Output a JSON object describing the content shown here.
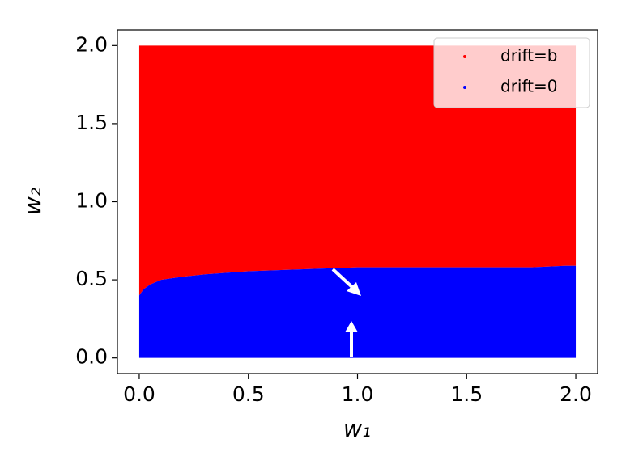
{
  "chart_data": {
    "type": "region",
    "x_label": "w₁",
    "y_label": "w₂",
    "x_range": [
      0,
      2
    ],
    "y_range": [
      0,
      2
    ],
    "boundary": {
      "x": [
        0,
        0.02,
        0.05,
        0.1,
        0.15,
        0.2,
        0.3,
        0.4,
        0.5,
        0.7,
        0.9,
        1.0,
        1.2,
        1.5,
        1.8,
        1.95,
        2.0
      ],
      "y": [
        0.4,
        0.44,
        0.47,
        0.5,
        0.51,
        0.52,
        0.535,
        0.545,
        0.555,
        0.565,
        0.575,
        0.58,
        0.58,
        0.58,
        0.58,
        0.59,
        0.59
      ]
    },
    "series": [
      {
        "name": "drift=b",
        "color": "#ff0000",
        "side": "above"
      },
      {
        "name": "drift=0",
        "color": "#0000ff",
        "side": "below"
      }
    ],
    "xlim": [
      -0.1,
      2.1
    ],
    "ylim": [
      -0.1,
      2.1
    ],
    "xticks": [
      {
        "value": 0,
        "label": "0.0"
      },
      {
        "value": 0.5,
        "label": "0.5"
      },
      {
        "value": 1,
        "label": "1.0"
      },
      {
        "value": 1.5,
        "label": "1.5"
      },
      {
        "value": 2,
        "label": "2.0"
      }
    ],
    "yticks": [
      {
        "value": 0,
        "label": "0.0"
      },
      {
        "value": 0.5,
        "label": "0.5"
      },
      {
        "value": 1,
        "label": "1.0"
      },
      {
        "value": 1.5,
        "label": "1.5"
      },
      {
        "value": 2,
        "label": "2.0"
      }
    ],
    "legend": "upper right"
  }
}
